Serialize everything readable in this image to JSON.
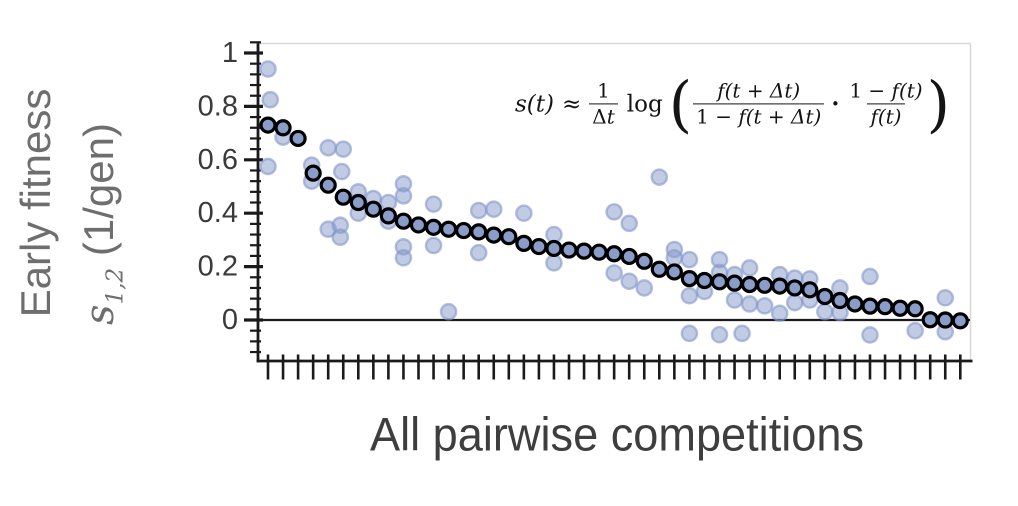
{
  "figure": {
    "x_axis_label": "All pairwise competitions",
    "y_axis_label_line1": "Early fitness",
    "y_axis_label_var": "s",
    "y_axis_label_sub": "1,2",
    "y_axis_label_rest": " (1/gen)"
  },
  "formula": {
    "lhs": "s(t)",
    "approx": "≈",
    "coef_num": "1",
    "coef_den_delta": "Δ",
    "coef_den_t": "t",
    "log": "log",
    "paren_open": "(",
    "paren_close": ")",
    "frac_a_num": "f(t + Δt)",
    "frac_a_den_pre": "1 − ",
    "frac_a_den_f": "f(t + Δt)",
    "cdot": "·",
    "frac_b_num_pre": "1 − ",
    "frac_b_num_f": "f(t)",
    "frac_b_den": "f(t)"
  },
  "chart_data": {
    "type": "scatter",
    "title": "",
    "xlabel": "All pairwise competitions",
    "ylabel": "Early fitness s_{1,2} (1/gen)",
    "x_tick_count": 47,
    "x_tick_labels": "none (one unlabeled tick per competition)",
    "y_ticks": [
      0,
      0.2,
      0.4,
      0.6,
      0.8,
      1
    ],
    "y_minor_tick_step": 0.04,
    "ylim": [
      -0.155,
      1.035
    ],
    "grid": false,
    "zero_line_y": 0,
    "legend": "none",
    "annotation_formula": "s(t) ≈ (1/Δt) log( f(t+Δt)/(1−f(t+Δt)) · (1−f(t))/f(t) )",
    "series": [
      {
        "name": "sorted pairwise competition fitness (dark outlined circles)",
        "marker": "dark",
        "values": [
          0.73,
          0.72,
          0.68,
          0.55,
          0.505,
          0.46,
          0.44,
          0.415,
          0.39,
          0.37,
          0.356,
          0.347,
          0.34,
          0.335,
          0.33,
          0.318,
          0.312,
          0.287,
          0.275,
          0.268,
          0.262,
          0.258,
          0.254,
          0.248,
          0.238,
          0.22,
          0.19,
          0.18,
          0.155,
          0.148,
          0.143,
          0.138,
          0.133,
          0.13,
          0.127,
          0.12,
          0.113,
          0.088,
          0.073,
          0.06,
          0.052,
          0.05,
          0.044,
          0.042,
          0.001,
          0.0,
          -0.003
        ]
      },
      {
        "name": "replicate measurements (light circles)",
        "marker": "light",
        "points": [
          [
            0,
            0.94
          ],
          [
            0.15,
            0.825
          ],
          [
            0,
            0.575
          ],
          [
            1,
            0.685
          ],
          [
            2.9,
            0.58
          ],
          [
            2.9,
            0.52
          ],
          [
            4,
            0.645
          ],
          [
            5,
            0.64
          ],
          [
            4.9,
            0.556
          ],
          [
            4,
            0.34
          ],
          [
            4.8,
            0.355
          ],
          [
            4.8,
            0.31
          ],
          [
            6,
            0.48
          ],
          [
            6,
            0.4
          ],
          [
            7,
            0.455
          ],
          [
            8,
            0.44
          ],
          [
            8,
            0.37
          ],
          [
            9,
            0.51
          ],
          [
            9,
            0.465
          ],
          [
            9,
            0.274
          ],
          [
            9,
            0.233
          ],
          [
            11,
            0.434
          ],
          [
            11,
            0.279
          ],
          [
            12,
            0.031
          ],
          [
            14,
            0.41
          ],
          [
            14,
            0.252
          ],
          [
            15,
            0.415
          ],
          [
            17,
            0.4
          ],
          [
            19,
            0.32
          ],
          [
            19,
            0.214
          ],
          [
            23,
            0.405
          ],
          [
            23,
            0.176
          ],
          [
            24,
            0.362
          ],
          [
            24,
            0.145
          ],
          [
            25,
            0.12
          ],
          [
            26,
            0.535
          ],
          [
            27,
            0.264
          ],
          [
            27,
            0.233
          ],
          [
            28,
            0.226
          ],
          [
            28,
            0.091
          ],
          [
            28,
            -0.05
          ],
          [
            29,
            0.107
          ],
          [
            30,
            0.226
          ],
          [
            30,
            0.178
          ],
          [
            30,
            -0.055
          ],
          [
            31,
            0.17
          ],
          [
            31,
            0.075
          ],
          [
            31.5,
            -0.05
          ],
          [
            32,
            0.195
          ],
          [
            32,
            0.06
          ],
          [
            33,
            0.053
          ],
          [
            34,
            0.17
          ],
          [
            34,
            0.025
          ],
          [
            35,
            0.157
          ],
          [
            35,
            0.065
          ],
          [
            36,
            0.154
          ],
          [
            36,
            0.075
          ],
          [
            37,
            0.031
          ],
          [
            38,
            0.12
          ],
          [
            38,
            0.028
          ],
          [
            40,
            0.163
          ],
          [
            40,
            -0.056
          ],
          [
            43,
            -0.04
          ],
          [
            45,
            0.083
          ],
          [
            45,
            -0.044
          ]
        ]
      }
    ],
    "colors": {
      "dark_fill": "#8a9cc8",
      "dark_stroke": "#000000",
      "light_base": "#8498c9",
      "axis": "#1a1a1a",
      "frame_light": "#d9d9d9",
      "tick_label": "#3a3a3a",
      "y_label_gray": "#6e6e6e",
      "x_label_gray": "#3e3e3e"
    }
  }
}
